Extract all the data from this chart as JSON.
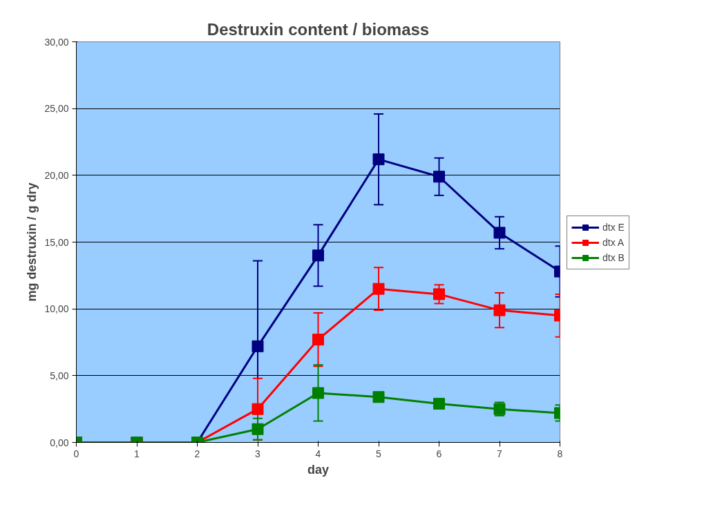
{
  "chart_data": {
    "type": "line",
    "title": "Destruxin content / biomass",
    "xlabel": "day",
    "ylabel": "mg destruxin / g dry",
    "x": [
      0,
      1,
      2,
      3,
      4,
      5,
      6,
      7,
      8
    ],
    "xlim": [
      0,
      8
    ],
    "xticks": [
      0,
      1,
      2,
      3,
      4,
      5,
      6,
      7,
      8
    ],
    "ylim": [
      0,
      30
    ],
    "yticks": [
      {
        "value": 0,
        "label": "0,00"
      },
      {
        "value": 5,
        "label": "5,00"
      },
      {
        "value": 10,
        "label": "10,00"
      },
      {
        "value": 15,
        "label": "15,00"
      },
      {
        "value": 20,
        "label": "20,00"
      },
      {
        "value": 25,
        "label": "25,00"
      },
      {
        "value": 30,
        "label": "30,00"
      }
    ],
    "grid": "y",
    "legend": "right",
    "marker": "square",
    "line_style": "solid",
    "series": [
      {
        "name": "dtx E",
        "color": "#000080",
        "values": [
          0,
          0,
          0,
          7.2,
          14.0,
          21.2,
          19.9,
          15.7,
          12.8
        ],
        "errors": [
          null,
          null,
          null,
          6.4,
          2.3,
          3.4,
          1.4,
          1.2,
          1.9
        ]
      },
      {
        "name": "dtx A",
        "color": "#ff0000",
        "values": [
          0,
          0,
          0,
          2.5,
          7.7,
          11.5,
          11.1,
          9.9,
          9.5
        ],
        "errors": [
          null,
          null,
          null,
          2.3,
          2.0,
          1.6,
          0.7,
          1.3,
          1.6
        ]
      },
      {
        "name": "dtx B",
        "color": "#008000",
        "values": [
          0,
          0,
          0,
          1.0,
          3.7,
          3.4,
          2.9,
          2.5,
          2.2
        ],
        "errors": [
          null,
          null,
          null,
          0.8,
          2.1,
          null,
          null,
          0.5,
          0.6
        ]
      }
    ]
  }
}
